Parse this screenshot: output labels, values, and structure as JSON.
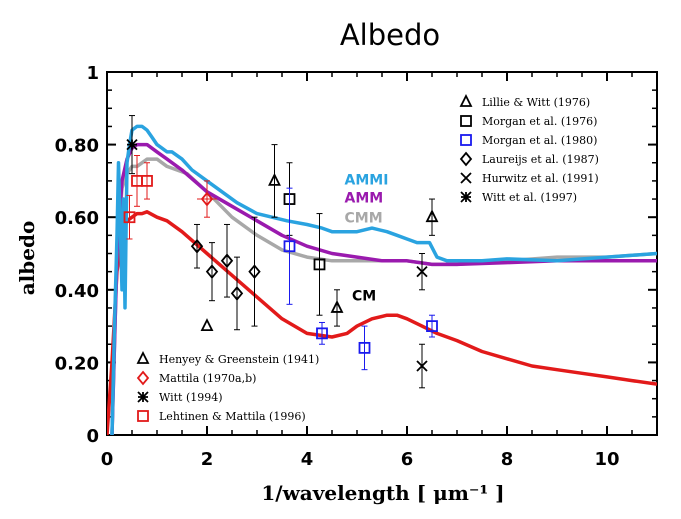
{
  "chart_data": {
    "type": "line",
    "title": "Albedo",
    "xlabel": "1/wavelength [ μm⁻¹ ]",
    "ylabel": "albedo",
    "xlim": [
      0,
      11
    ],
    "ylim": [
      0,
      1
    ],
    "x_ticks": [
      "0",
      "2",
      "4",
      "6",
      "8",
      "10"
    ],
    "y_ticks": [
      "0",
      "0.20",
      "0.40",
      "0.60",
      "0.80",
      "1"
    ],
    "series": [
      {
        "name": "AMMI",
        "color": "#2aa3e0",
        "x": [
          0.1,
          0.15,
          0.2,
          0.23,
          0.27,
          0.3,
          0.33,
          0.36,
          0.4,
          0.45,
          0.5,
          0.6,
          0.7,
          0.8,
          0.9,
          1.0,
          1.1,
          1.2,
          1.3,
          1.5,
          1.7,
          2.0,
          2.3,
          2.6,
          3.0,
          3.3,
          3.6,
          4.0,
          4.3,
          4.5,
          4.8,
          5.0,
          5.3,
          5.6,
          5.8,
          6.0,
          6.2,
          6.3,
          6.45,
          6.6,
          6.8,
          7.0,
          7.5,
          8.0,
          9.0,
          10.0,
          11.0
        ],
        "y": [
          0.0,
          0.3,
          0.55,
          0.75,
          0.55,
          0.4,
          0.65,
          0.35,
          0.75,
          0.8,
          0.84,
          0.85,
          0.85,
          0.84,
          0.82,
          0.8,
          0.79,
          0.78,
          0.78,
          0.76,
          0.73,
          0.7,
          0.67,
          0.64,
          0.61,
          0.6,
          0.59,
          0.58,
          0.57,
          0.56,
          0.56,
          0.56,
          0.57,
          0.56,
          0.55,
          0.54,
          0.53,
          0.53,
          0.53,
          0.49,
          0.48,
          0.48,
          0.48,
          0.485,
          0.48,
          0.49,
          0.5
        ]
      },
      {
        "name": "AMM",
        "color": "#9a1aae",
        "x": [
          0.1,
          0.2,
          0.3,
          0.4,
          0.5,
          0.6,
          0.7,
          0.8,
          1.0,
          1.2,
          1.5,
          2.0,
          2.5,
          3.0,
          3.5,
          4.0,
          4.5,
          5.0,
          5.5,
          6.0,
          6.5,
          7.0,
          8.0,
          9.0,
          10.0,
          11.0
        ],
        "y": [
          0.0,
          0.5,
          0.7,
          0.76,
          0.79,
          0.8,
          0.8,
          0.8,
          0.78,
          0.76,
          0.73,
          0.67,
          0.63,
          0.59,
          0.55,
          0.52,
          0.5,
          0.49,
          0.48,
          0.48,
          0.47,
          0.47,
          0.475,
          0.48,
          0.48,
          0.48
        ]
      },
      {
        "name": "CMM",
        "color": "#a8a8a8",
        "x": [
          0.1,
          0.2,
          0.3,
          0.4,
          0.5,
          0.6,
          0.7,
          0.8,
          1.0,
          1.2,
          1.4,
          1.6,
          2.0,
          2.5,
          3.0,
          3.5,
          4.0,
          4.5,
          5.0,
          5.5,
          6.0,
          6.5,
          7.0,
          8.0,
          9.0,
          10.0,
          11.0
        ],
        "y": [
          0.0,
          0.5,
          0.68,
          0.72,
          0.74,
          0.74,
          0.75,
          0.76,
          0.76,
          0.74,
          0.73,
          0.72,
          0.67,
          0.6,
          0.55,
          0.51,
          0.49,
          0.48,
          0.48,
          0.48,
          0.48,
          0.47,
          0.47,
          0.48,
          0.49,
          0.49,
          0.5
        ]
      },
      {
        "name": "CM",
        "color": "#e21a1a",
        "x": [
          0.0,
          0.1,
          0.2,
          0.3,
          0.4,
          0.5,
          0.6,
          0.7,
          0.8,
          1.0,
          1.2,
          1.5,
          2.0,
          2.5,
          3.0,
          3.5,
          4.0,
          4.5,
          4.8,
          5.0,
          5.3,
          5.6,
          5.8,
          6.0,
          6.3,
          6.6,
          7.0,
          7.5,
          8.0,
          8.5,
          9.0,
          9.5,
          10.0,
          10.5,
          11.0
        ],
        "y": [
          0.0,
          0.2,
          0.45,
          0.55,
          0.59,
          0.6,
          0.61,
          0.61,
          0.615,
          0.6,
          0.59,
          0.56,
          0.5,
          0.44,
          0.38,
          0.32,
          0.28,
          0.27,
          0.28,
          0.3,
          0.32,
          0.33,
          0.33,
          0.32,
          0.3,
          0.28,
          0.26,
          0.23,
          0.21,
          0.19,
          0.18,
          0.17,
          0.16,
          0.15,
          0.14
        ]
      }
    ],
    "model_labels": [
      "AMMI",
      "AMM",
      "CMM",
      "CM"
    ],
    "observations": [
      {
        "name": "Lillie & Witt (1976)",
        "marker": "triangle",
        "color": "#000000",
        "points": [
          {
            "x": 2.0,
            "y": 0.3,
            "err": 0.0
          },
          {
            "x": 3.35,
            "y": 0.7,
            "err": 0.1
          },
          {
            "x": 4.6,
            "y": 0.35,
            "err": 0.05
          },
          {
            "x": 6.5,
            "y": 0.6,
            "err": 0.05
          }
        ]
      },
      {
        "name": "Morgan et al. (1976)",
        "marker": "square",
        "color": "#000000",
        "points": [
          {
            "x": 3.65,
            "y": 0.65,
            "err": 0.1
          },
          {
            "x": 4.25,
            "y": 0.47,
            "err": 0.14
          }
        ]
      },
      {
        "name": "Morgan et al. (1980)",
        "marker": "square",
        "color": "#1a1aee",
        "points": [
          {
            "x": 3.65,
            "y": 0.52,
            "err": 0.16
          },
          {
            "x": 4.3,
            "y": 0.28,
            "err": 0.03
          },
          {
            "x": 5.15,
            "y": 0.24,
            "err": 0.06
          },
          {
            "x": 6.5,
            "y": 0.3,
            "err": 0.03
          }
        ]
      },
      {
        "name": "Laureijs et al. (1987)",
        "marker": "diamond",
        "color": "#000000",
        "points": [
          {
            "x": 1.8,
            "y": 0.52,
            "err": 0.06
          },
          {
            "x": 2.1,
            "y": 0.45,
            "err": 0.08
          },
          {
            "x": 2.4,
            "y": 0.48,
            "err": 0.1
          },
          {
            "x": 2.6,
            "y": 0.39,
            "err": 0.1
          },
          {
            "x": 2.95,
            "y": 0.45,
            "err": 0.15
          }
        ]
      },
      {
        "name": "Hurwitz et al. (1991)",
        "marker": "cross",
        "color": "#000000",
        "points": [
          {
            "x": 6.3,
            "y": 0.45,
            "err": 0.05
          },
          {
            "x": 6.3,
            "y": 0.19,
            "err": 0.06
          }
        ]
      },
      {
        "name": "Witt et al. (1997)",
        "marker": "asterisk",
        "color": "#000000",
        "points": [
          {
            "x": 0.5,
            "y": 0.8,
            "err": 0.08
          }
        ]
      },
      {
        "name": "Henyey & Greenstein (1941)",
        "marker": "triangle",
        "color": "#000000",
        "points": []
      },
      {
        "name": "Mattila (1970a,b)",
        "marker": "diamond",
        "color": "#e21a1a",
        "points": [
          {
            "x": 2.0,
            "y": 0.65,
            "err": 0.05
          }
        ]
      },
      {
        "name": "Witt (1994)",
        "marker": "asterisk",
        "color": "#000000",
        "points": []
      },
      {
        "name": "Lehtinen & Mattila (1996)",
        "marker": "square",
        "color": "#e21a1a",
        "points": [
          {
            "x": 0.45,
            "y": 0.6,
            "err": 0.06
          },
          {
            "x": 0.6,
            "y": 0.7,
            "err": 0.07
          },
          {
            "x": 0.8,
            "y": 0.7,
            "err": 0.05
          }
        ]
      }
    ],
    "legend_top_right": [
      "Lillie & Witt (1976)",
      "Morgan et al. (1976)",
      "Morgan et al. (1980)",
      "Laureijs et al. (1987)",
      "Hurwitz et al. (1991)",
      " Witt et al. (1997)"
    ],
    "legend_bottom_left": [
      "Henyey & Greenstein (1941)",
      "Mattila (1970a,b)",
      "Witt (1994)",
      "Lehtinen & Mattila (1996)"
    ],
    "legend_placement": [
      "top-right",
      "bottom-left"
    ],
    "grid": false
  }
}
